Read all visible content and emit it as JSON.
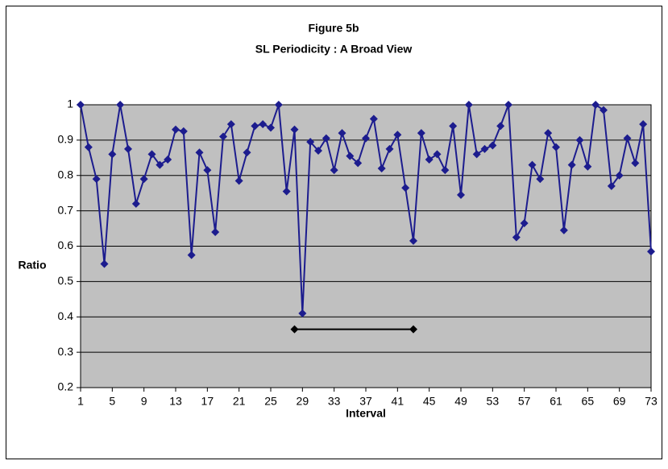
{
  "chart_data": {
    "type": "line",
    "title": "Figure 5b",
    "subtitle": "SL Periodicity : A Broad View",
    "x_label": "Interval",
    "y_label": "Ratio",
    "x": [
      1,
      2,
      3,
      4,
      5,
      6,
      7,
      8,
      9,
      10,
      11,
      12,
      13,
      14,
      15,
      16,
      17,
      18,
      19,
      20,
      21,
      22,
      23,
      24,
      25,
      26,
      27,
      28,
      29,
      30,
      31,
      32,
      33,
      34,
      35,
      36,
      37,
      38,
      39,
      40,
      41,
      42,
      43,
      44,
      45,
      46,
      47,
      48,
      49,
      50,
      51,
      52,
      53,
      54,
      55,
      56,
      57,
      58,
      59,
      60,
      61,
      62,
      63,
      64,
      65,
      66,
      67,
      68,
      69,
      70,
      71,
      72,
      73
    ],
    "series": [
      {
        "color": "#1c1c8e",
        "marker": "diamond",
        "values": [
          1.0,
          0.88,
          0.79,
          0.55,
          0.86,
          1.0,
          0.875,
          0.72,
          0.79,
          0.86,
          0.83,
          0.845,
          0.93,
          0.925,
          0.575,
          0.865,
          0.815,
          0.64,
          0.91,
          0.945,
          0.785,
          0.865,
          0.94,
          0.945,
          0.935,
          1.0,
          0.755,
          0.93,
          0.41,
          0.895,
          0.87,
          0.905,
          0.815,
          0.92,
          0.855,
          0.835,
          0.905,
          0.96,
          0.82,
          0.875,
          0.915,
          0.765,
          0.615,
          0.92,
          0.845,
          0.86,
          0.815,
          0.94,
          0.745,
          1.0,
          0.86,
          0.875,
          0.885,
          0.94,
          1.0,
          0.625,
          0.665,
          0.83,
          0.79,
          0.92,
          0.88,
          0.645,
          0.83,
          0.9,
          0.825,
          1.0,
          0.985,
          0.77,
          0.8,
          0.905,
          0.835,
          0.945,
          0.585
        ]
      },
      {
        "color": "#000000",
        "marker": "diamond",
        "x": [
          28,
          43
        ],
        "values": [
          0.365,
          0.365
        ]
      }
    ],
    "xlim": [
      1,
      73
    ],
    "xticks": [
      1,
      5,
      9,
      13,
      17,
      21,
      25,
      29,
      33,
      37,
      41,
      45,
      49,
      53,
      57,
      61,
      65,
      69,
      73
    ],
    "ylim": [
      0.2,
      1
    ],
    "yticks": [
      0.2,
      0.3,
      0.4,
      0.5,
      0.6,
      0.7,
      0.8,
      0.9,
      1
    ],
    "grid": true
  }
}
